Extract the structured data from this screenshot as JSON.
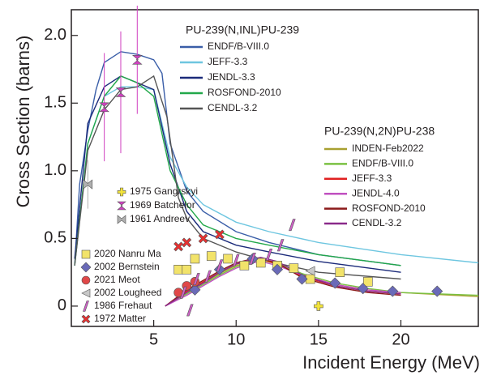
{
  "chart_data": {
    "type": "line",
    "x_label": "Incident Energy (MeV)",
    "y_label": "Cross Section (barns)",
    "xlim": [
      0,
      24.7
    ],
    "ylim": [
      -0.15,
      2.19
    ],
    "xticks": [
      5,
      10,
      15,
      20
    ],
    "yticks": [
      {
        "value": 0,
        "label": "0"
      },
      0.5,
      {
        "value": 1,
        "label": "1.0"
      },
      1.5,
      {
        "value": 2,
        "label": "2.0"
      }
    ],
    "groups": [
      {
        "title": "PU-239(N,INL)PU-239",
        "series": [
          {
            "name": "ENDF/B-VIII.0",
            "color": "#3a5ea8",
            "x": [
              0.2,
              0.5,
              1,
              1.5,
              2,
              3,
              4,
              5,
              5.5,
              6,
              7,
              8,
              10,
              12,
              15,
              20
            ],
            "values": [
              0.3,
              0.9,
              1.3,
              1.6,
              1.8,
              1.88,
              1.86,
              1.82,
              1.72,
              1.2,
              0.85,
              0.7,
              0.55,
              0.47,
              0.38,
              0.3
            ]
          },
          {
            "name": "JEFF-3.3",
            "color": "#6ec6e0",
            "x": [
              0.2,
              1,
              2,
              3,
              4,
              5,
              6,
              7,
              8,
              10,
              12,
              15,
              20,
              24.7
            ],
            "values": [
              0.3,
              1.2,
              1.55,
              1.62,
              1.62,
              1.6,
              1.1,
              0.88,
              0.75,
              0.62,
              0.55,
              0.47,
              0.38,
              0.32
            ]
          },
          {
            "name": "JENDL-3.3",
            "color": "#1b2a7a",
            "x": [
              0.2,
              1,
              2,
              3,
              4,
              5,
              6,
              7,
              8,
              10,
              12,
              15,
              20
            ],
            "values": [
              0.35,
              1.35,
              1.62,
              1.7,
              1.65,
              1.6,
              1.05,
              0.7,
              0.55,
              0.45,
              0.4,
              0.33,
              0.25
            ]
          },
          {
            "name": "ROSFOND-2010",
            "color": "#22a84a",
            "x": [
              0.2,
              1,
              2,
              3,
              4,
              5,
              6,
              7,
              8,
              10,
              12,
              15,
              20
            ],
            "values": [
              0.3,
              1.2,
              1.55,
              1.7,
              1.65,
              1.55,
              1.0,
              0.75,
              0.6,
              0.5,
              0.45,
              0.38,
              0.3
            ]
          },
          {
            "name": "CENDL-3.2",
            "color": "#555555",
            "x": [
              0.2,
              1,
              2,
              3,
              4,
              5,
              5.8,
              6.5,
              7,
              8,
              10,
              12,
              15,
              20
            ],
            "values": [
              0.3,
              1.15,
              1.45,
              1.6,
              1.62,
              1.7,
              1.4,
              0.8,
              0.65,
              0.5,
              0.4,
              0.33,
              0.25,
              0.2
            ]
          }
        ]
      },
      {
        "title": "PU-239(N,2N)PU-238",
        "series": [
          {
            "name": "INDEN-Feb2022",
            "color": "#a8a030",
            "x": [
              5.7,
              7,
              8,
              9,
              10,
              11,
              11.5,
              12.5,
              14,
              16,
              18,
              20,
              24.7
            ],
            "values": [
              0,
              0.1,
              0.17,
              0.24,
              0.3,
              0.33,
              0.34,
              0.31,
              0.23,
              0.16,
              0.12,
              0.1,
              0.07
            ]
          },
          {
            "name": "ENDF/B-VIII.0",
            "color": "#7ac142",
            "x": [
              5.7,
              7,
              8,
              9,
              10,
              11,
              11.5,
              12.5,
              14,
              16,
              18,
              20,
              24.7
            ],
            "values": [
              0,
              0.09,
              0.16,
              0.23,
              0.29,
              0.33,
              0.34,
              0.32,
              0.24,
              0.17,
              0.13,
              0.1,
              0.08
            ]
          },
          {
            "name": "JEFF-3.3",
            "color": "#e02020",
            "x": [
              5.7,
              7,
              8,
              9,
              10,
              11,
              11.5,
              12.5,
              14,
              16,
              18,
              20
            ],
            "values": [
              0,
              0.11,
              0.18,
              0.25,
              0.31,
              0.34,
              0.35,
              0.31,
              0.22,
              0.15,
              0.11,
              0.09
            ]
          },
          {
            "name": "JENDL-4.0",
            "color": "#c050c0",
            "x": [
              5.7,
              7,
              8,
              9,
              10,
              11,
              11.5,
              12.5,
              14,
              16,
              18,
              20
            ],
            "values": [
              0,
              0.08,
              0.15,
              0.22,
              0.28,
              0.32,
              0.33,
              0.3,
              0.23,
              0.16,
              0.12,
              0.1
            ]
          },
          {
            "name": "ROSFOND-2010",
            "color": "#8b1a1a",
            "x": [
              5.7,
              7,
              8,
              9,
              10,
              11,
              11.5,
              12.5,
              14,
              16,
              18,
              20
            ],
            "values": [
              0,
              0.12,
              0.19,
              0.26,
              0.32,
              0.35,
              0.35,
              0.32,
              0.21,
              0.14,
              0.1,
              0.08
            ]
          },
          {
            "name": "CENDL-3.2",
            "color": "#8a2a8a",
            "x": [
              5.7,
              7,
              8,
              9,
              10,
              11,
              11.5,
              12.5,
              14,
              16,
              18,
              20
            ],
            "values": [
              0,
              0.1,
              0.17,
              0.25,
              0.31,
              0.35,
              0.36,
              0.33,
              0.23,
              0.15,
              0.11,
              0.09
            ]
          }
        ]
      }
    ],
    "markers": [
      {
        "name": "1975 Gangrskyi",
        "color": "#f2e33a",
        "marker": "plus",
        "x": [
          15
        ],
        "values": [
          0
        ]
      },
      {
        "name": "1969 Batchelor",
        "color": "#d040c0",
        "marker": "hourglass",
        "x": [
          2,
          3,
          4
        ],
        "values": [
          1.47,
          1.58,
          1.82
        ],
        "errors": [
          0.4,
          0.45,
          0.4
        ]
      },
      {
        "name": "1961 Andreev",
        "color": "#b0b0b0",
        "marker": "bowtie",
        "x": [
          1
        ],
        "values": [
          0.9
        ],
        "errors": [
          0.18
        ]
      },
      {
        "name": "2020 Nanru Ma",
        "color": "#f2e36a",
        "marker": "square",
        "x": [
          6.5,
          7,
          7.5,
          8.5,
          9.5,
          10.5,
          11.5,
          12.5,
          13.5,
          14.5,
          16.3,
          18
        ],
        "values": [
          0.27,
          0.27,
          0.35,
          0.37,
          0.35,
          0.3,
          0.32,
          0.3,
          0.28,
          0.2,
          0.25,
          0.18
        ]
      },
      {
        "name": "2002 Bernstein",
        "color": "#6a6ab8",
        "marker": "diamond",
        "x": [
          7.5,
          9,
          11,
          12.5,
          14,
          16,
          17.7,
          19.5,
          22.2
        ],
        "values": [
          0.12,
          0.27,
          0.35,
          0.27,
          0.2,
          0.17,
          0.13,
          0.11,
          0.11
        ]
      },
      {
        "name": "2021 Meot",
        "color": "#e04848",
        "marker": "circle",
        "x": [
          6.5,
          7,
          7.5
        ],
        "values": [
          0.1,
          0.15,
          0.18
        ]
      },
      {
        "name": "2002 Lougheed",
        "color": "#c8c8c8",
        "marker": "triangle",
        "x": [
          14.5
        ],
        "values": [
          0.26
        ]
      },
      {
        "name": "1986 Frehaut",
        "color": "#d060c8",
        "marker": "bar",
        "x": [
          6.8,
          7.2,
          7.6,
          8.3,
          9,
          10,
          11,
          12,
          12.7,
          13.4
        ],
        "values": [
          0.1,
          -0.03,
          0.2,
          0.22,
          0.3,
          0.34,
          0.35,
          0.38,
          0.45,
          0.6
        ]
      },
      {
        "name": "1972 Matter",
        "color": "#e83030",
        "marker": "x",
        "x": [
          6.5,
          7,
          8,
          9
        ],
        "values": [
          0.44,
          0.47,
          0.5,
          0.53
        ]
      }
    ]
  }
}
